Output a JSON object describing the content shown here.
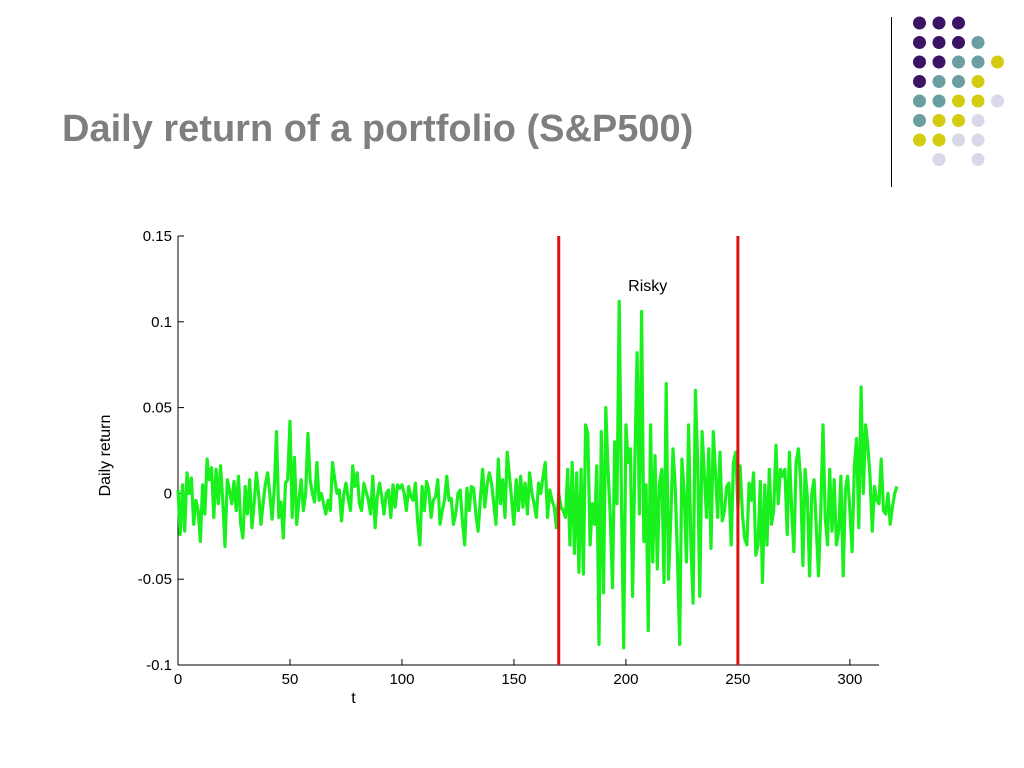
{
  "slide": {
    "title": "Daily return of a portfolio (S&P500)"
  },
  "decoration": {
    "dot_colors": [
      "#3b1466",
      "#6b9ea0",
      "#d4cc10",
      "#d8d8ea"
    ],
    "grid_rows": [
      [
        null,
        0,
        0,
        0,
        null
      ],
      [
        null,
        0,
        0,
        0,
        1
      ],
      [
        null,
        0,
        0,
        1,
        1,
        2
      ],
      [
        null,
        0,
        1,
        1,
        2
      ],
      [
        null,
        1,
        1,
        2,
        2,
        3
      ],
      [
        null,
        1,
        2,
        2,
        3
      ],
      [
        null,
        2,
        2,
        3,
        3
      ],
      [
        null,
        null,
        3,
        null,
        3
      ]
    ]
  },
  "chart_data": {
    "type": "line",
    "xlabel": "t",
    "ylabel": "Daily return",
    "xlim": [
      0,
      313
    ],
    "ylim": [
      -0.1,
      0.15
    ],
    "xticks": [
      0,
      50,
      100,
      150,
      200,
      250,
      300
    ],
    "yticks": [
      -0.1,
      -0.05,
      0,
      0.05,
      0.1,
      0.15
    ],
    "ytick_labels": [
      "-0.1",
      "-0.05",
      "0",
      "0.05",
      "0.1",
      "0.15"
    ],
    "xtick_labels": [
      "0",
      "50",
      "100",
      "150",
      "200",
      "250",
      "300"
    ],
    "grid": false,
    "line_color": "#19f01e",
    "marker_color": "#dd1111",
    "vertical_markers": [
      170,
      250
    ],
    "annotation": {
      "text": "Risky",
      "x": 201,
      "y": 0.118
    },
    "series": [
      {
        "values": [
          0.002,
          -0.024,
          0.005,
          -0.022,
          0.012,
          0.0,
          0.009,
          -0.018,
          -0.004,
          -0.01,
          -0.028,
          0.005,
          -0.012,
          0.02,
          0.008,
          0.015,
          -0.014,
          0.014,
          -0.006,
          0.016,
          -0.005,
          -0.031,
          0.008,
          0.002,
          -0.006,
          0.007,
          -0.01,
          0.01,
          -0.018,
          -0.026,
          0.004,
          -0.012,
          0.008,
          -0.02,
          -0.006,
          0.012,
          0.0,
          -0.018,
          -0.006,
          0.005,
          0.012,
          0.0,
          -0.015,
          0.003,
          0.036,
          -0.014,
          -0.005,
          -0.026,
          0.006,
          0.008,
          0.042,
          -0.014,
          0.021,
          -0.018,
          -0.004,
          0.008,
          -0.01,
          0.0,
          0.035,
          0.008,
          0.0,
          -0.005,
          0.018,
          -0.004,
          0.0,
          -0.006,
          -0.012,
          -0.004,
          -0.01,
          0.018,
          0.008,
          0.0,
          0.002,
          -0.016,
          -0.001,
          0.006,
          -0.003,
          -0.01,
          0.016,
          0.004,
          0.012,
          -0.006,
          -0.01,
          0.006,
          0.001,
          -0.004,
          -0.012,
          0.01,
          -0.02,
          -0.002,
          0.006,
          -0.002,
          -0.012,
          0.0,
          0.002,
          -0.014,
          0.005,
          -0.008,
          0.005,
          0.003,
          0.005,
          0.0,
          -0.01,
          0.004,
          -0.002,
          -0.004,
          0.006,
          -0.016,
          -0.03,
          0.004,
          -0.01,
          0.007,
          0.002,
          -0.014,
          -0.004,
          -0.002,
          0.008,
          -0.018,
          -0.01,
          -0.004,
          0.01,
          -0.004,
          -0.003,
          -0.018,
          -0.012,
          0.0,
          0.002,
          -0.016,
          -0.03,
          0.003,
          -0.01,
          0.004,
          0.003,
          -0.012,
          -0.022,
          -0.004,
          0.014,
          -0.008,
          0.005,
          0.012,
          0.006,
          -0.006,
          -0.018,
          0.02,
          -0.006,
          0.008,
          -0.014,
          0.024,
          0.01,
          -0.004,
          -0.018,
          0.008,
          -0.01,
          0.01,
          -0.008,
          0.006,
          -0.012,
          0.012,
          0.0,
          -0.006,
          -0.014,
          0.006,
          0.0,
          0.01,
          0.018,
          -0.014,
          0.002,
          -0.004,
          -0.008,
          -0.02,
          0.0,
          -0.008,
          -0.01,
          -0.014,
          0.014,
          -0.03,
          0.018,
          -0.035,
          0.012,
          -0.046,
          0.014,
          -0.047,
          0.04,
          0.035,
          -0.03,
          -0.006,
          -0.018,
          0.016,
          -0.088,
          0.036,
          -0.058,
          0.05,
          0.014,
          -0.012,
          -0.055,
          0.03,
          -0.006,
          0.112,
          0.0,
          -0.09,
          0.04,
          0.018,
          0.026,
          -0.06,
          0.02,
          0.082,
          -0.012,
          0.106,
          -0.028,
          0.005,
          -0.08,
          0.04,
          -0.04,
          0.022,
          -0.044,
          0.006,
          0.014,
          -0.052,
          0.064,
          -0.05,
          -0.016,
          0.026,
          0.004,
          -0.036,
          -0.088,
          0.02,
          0.0,
          -0.04,
          0.04,
          -0.03,
          -0.064,
          0.06,
          0.02,
          -0.06,
          0.036,
          0.012,
          -0.014,
          0.026,
          -0.032,
          0.036,
          0.012,
          -0.014,
          0.024,
          -0.016,
          -0.01,
          0.004,
          0.006,
          -0.03,
          0.018,
          0.024,
          -0.008,
          0.016,
          -0.012,
          -0.026,
          -0.03,
          0.006,
          -0.004,
          0.012,
          -0.036,
          -0.03,
          0.007,
          -0.052,
          0.005,
          -0.03,
          0.014,
          -0.018,
          -0.01,
          0.028,
          -0.006,
          0.014,
          0.01,
          0.014,
          -0.024,
          0.024,
          -0.01,
          -0.034,
          0.018,
          0.026,
          0.008,
          -0.042,
          0.014,
          -0.002,
          -0.048,
          0.0,
          0.008,
          -0.02,
          -0.048,
          -0.01,
          0.04,
          -0.014,
          -0.03,
          0.014,
          -0.022,
          0.008,
          -0.03,
          -0.022,
          0.01,
          -0.048,
          0.002,
          0.01,
          -0.01,
          -0.034,
          0.016,
          0.032,
          -0.02,
          0.062,
          0.0,
          0.04,
          0.028,
          0.01,
          -0.022,
          0.004,
          -0.004,
          -0.006,
          0.02,
          -0.01,
          -0.012,
          0.0,
          -0.018,
          -0.008,
          0.0,
          0.004
        ]
      }
    ]
  }
}
